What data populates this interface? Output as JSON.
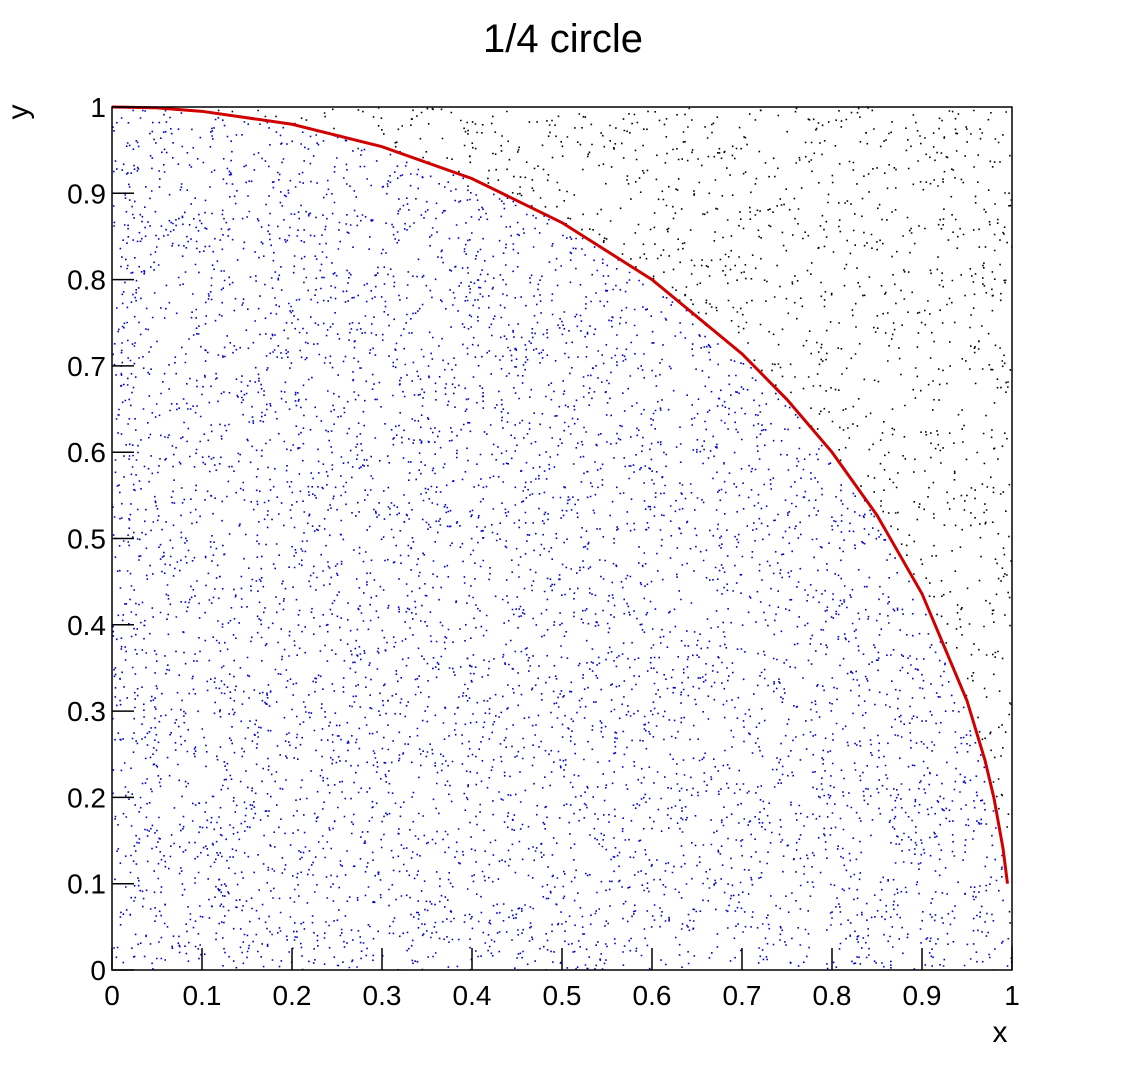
{
  "chart_data": {
    "type": "scatter",
    "title": "1/4 circle",
    "x_label": "x",
    "y_label": "y",
    "xlim": [
      0,
      1
    ],
    "ylim": [
      0,
      1
    ],
    "xticks": [
      0,
      0.1,
      0.2,
      0.3,
      0.4,
      0.5,
      0.6,
      0.7,
      0.8,
      0.9,
      1
    ],
    "yticks": [
      0,
      0.1,
      0.2,
      0.3,
      0.4,
      0.5,
      0.6,
      0.7,
      0.8,
      0.9,
      1
    ],
    "point_colors": {
      "inside": "#0000c8",
      "outside": "#000000"
    },
    "curve": {
      "color": "#d00000",
      "x": [
        0,
        0.05,
        0.1,
        0.2,
        0.3,
        0.4,
        0.5,
        0.6,
        0.7,
        0.75,
        0.8,
        0.85,
        0.9,
        0.95,
        0.97,
        0.98,
        0.99,
        0.995
      ],
      "y": [
        1,
        0.999,
        0.995,
        0.98,
        0.954,
        0.917,
        0.866,
        0.8,
        0.714,
        0.661,
        0.6,
        0.527,
        0.436,
        0.312,
        0.243,
        0.199,
        0.141,
        0.1
      ]
    }
  }
}
